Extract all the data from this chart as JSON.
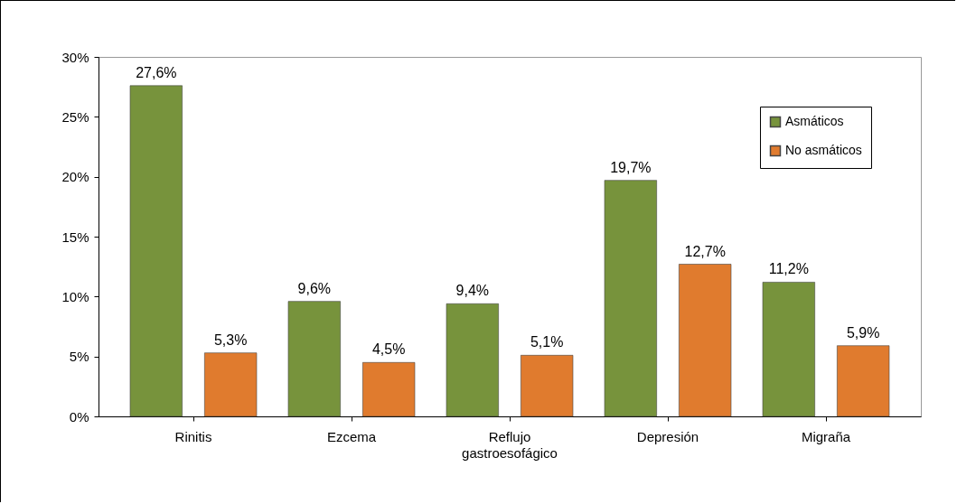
{
  "chart_data": {
    "type": "bar",
    "categories": [
      "Rinitis",
      "Ezcema",
      "Reflujo gastroesofágico",
      "Depresión",
      "Migraña"
    ],
    "series": [
      {
        "name": "Asmáticos",
        "color": "#77933c",
        "values": [
          27.6,
          9.6,
          9.4,
          19.7,
          11.2
        ],
        "value_labels": [
          "27,6%",
          "9,6%",
          "9,4%",
          "19,7%",
          "11,2%"
        ]
      },
      {
        "name": "No asmáticos",
        "color": "#e07b2e",
        "values": [
          5.3,
          4.5,
          5.1,
          12.7,
          5.9
        ],
        "value_labels": [
          "5,3%",
          "4,5%",
          "5,1%",
          "12,7%",
          "5,9%"
        ]
      }
    ],
    "ylim": [
      0,
      30
    ],
    "yticks": [
      {
        "value": 0,
        "label": "0%"
      },
      {
        "value": 5,
        "label": "5%"
      },
      {
        "value": 10,
        "label": "10%"
      },
      {
        "value": 15,
        "label": "15%"
      },
      {
        "value": 20,
        "label": "20%"
      },
      {
        "value": 25,
        "label": "25%"
      },
      {
        "value": 30,
        "label": "30%"
      }
    ],
    "legend": "top right",
    "grid": false
  }
}
